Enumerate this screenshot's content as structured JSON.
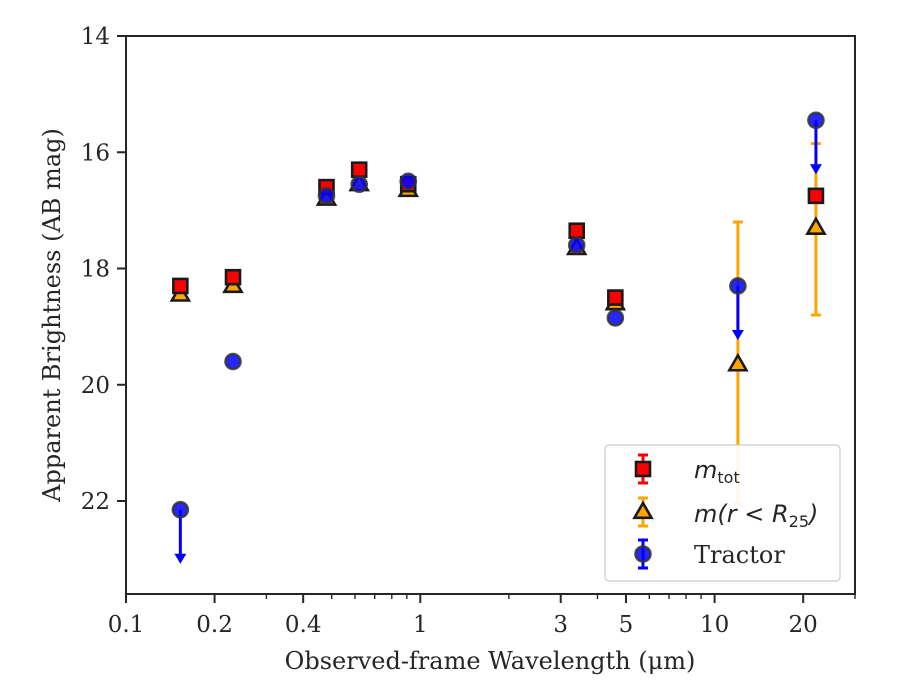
{
  "chart_data": {
    "type": "scatter",
    "title": "",
    "xlabel": "Observed-frame Wavelength (μm)",
    "ylabel": "Apparent Brightness (AB mag)",
    "xscale": "log",
    "xlim": [
      0.1,
      30
    ],
    "ylim": [
      23.6,
      14
    ],
    "y_inverted": true,
    "grid": false,
    "legend_position": "lower-right",
    "x_ticks": [
      {
        "value": 0.1,
        "label": "0.1"
      },
      {
        "value": 0.2,
        "label": "0.2"
      },
      {
        "value": 0.4,
        "label": "0.4"
      },
      {
        "value": 1,
        "label": "1"
      },
      {
        "value": 3,
        "label": "3"
      },
      {
        "value": 5,
        "label": "5"
      },
      {
        "value": 10,
        "label": "10"
      },
      {
        "value": 20,
        "label": "20"
      }
    ],
    "y_ticks": [
      {
        "value": 14,
        "label": "14"
      },
      {
        "value": 16,
        "label": "16"
      },
      {
        "value": 18,
        "label": "18"
      },
      {
        "value": 20,
        "label": "20"
      },
      {
        "value": 22,
        "label": "22"
      }
    ],
    "series": [
      {
        "name": "m_tot",
        "marker": "square",
        "color": "#ff0000",
        "points": [
          {
            "x": 0.153,
            "y": 18.3
          },
          {
            "x": 0.231,
            "y": 18.15
          },
          {
            "x": 0.48,
            "y": 16.6
          },
          {
            "x": 0.62,
            "y": 16.3
          },
          {
            "x": 0.91,
            "y": 16.55
          },
          {
            "x": 3.4,
            "y": 17.35
          },
          {
            "x": 4.6,
            "y": 18.5
          },
          {
            "x": 22.1,
            "y": 16.75
          }
        ]
      },
      {
        "name": "m(r < R_25)",
        "marker": "triangle",
        "color": "#ffa500",
        "points": [
          {
            "x": 0.153,
            "y": 18.45
          },
          {
            "x": 0.231,
            "y": 18.3
          },
          {
            "x": 0.48,
            "y": 16.8
          },
          {
            "x": 0.62,
            "y": 16.55
          },
          {
            "x": 0.91,
            "y": 16.65
          },
          {
            "x": 3.4,
            "y": 17.65
          },
          {
            "x": 4.6,
            "y": 18.6
          },
          {
            "x": 12.0,
            "y": 19.65,
            "yerr_low": 17.2,
            "yerr_high": 22.05
          },
          {
            "x": 22.1,
            "y": 17.3,
            "yerr_low": 15.85,
            "yerr_high": 18.8
          }
        ]
      },
      {
        "name": "Tractor",
        "marker": "circle",
        "color": "#0000ff",
        "points": [
          {
            "x": 0.153,
            "y": 22.15,
            "upper_limit": true
          },
          {
            "x": 0.231,
            "y": 19.6
          },
          {
            "x": 0.48,
            "y": 16.75
          },
          {
            "x": 0.62,
            "y": 16.55
          },
          {
            "x": 0.91,
            "y": 16.5
          },
          {
            "x": 3.4,
            "y": 17.6
          },
          {
            "x": 4.6,
            "y": 18.85
          },
          {
            "x": 12.0,
            "y": 18.3,
            "upper_limit": true
          },
          {
            "x": 22.1,
            "y": 15.45,
            "upper_limit": true
          }
        ]
      }
    ],
    "legend": {
      "tot_base": "m",
      "tot_sub": "tot",
      "r25_pre": "m(r < R",
      "r25_sub": "25",
      "r25_post": ")",
      "tractor": "Tractor"
    }
  }
}
